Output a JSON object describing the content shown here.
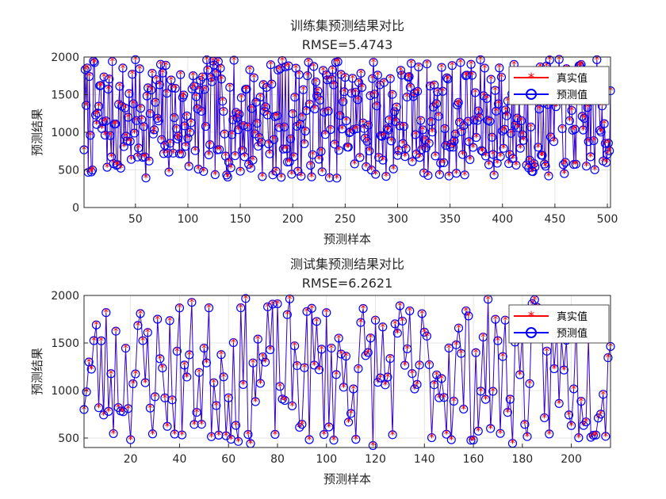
{
  "chart_data": [
    {
      "type": "line",
      "title": "训练集预测结果对比",
      "subtitle": "RMSE=5.4743",
      "xlabel": "预测样本",
      "ylabel": "预测结果",
      "xlim": [
        1,
        503
      ],
      "ylim": [
        0,
        2000
      ],
      "xticks": [
        50,
        100,
        150,
        200,
        250,
        300,
        350,
        400,
        450,
        500
      ],
      "yticks": [
        0,
        500,
        1000,
        1500,
        2000
      ],
      "grid": true,
      "legend_position": "top-right",
      "seed": 7,
      "n_points": 503,
      "series": [
        {
          "name": "真实值",
          "color": "#ff0000",
          "marker": "asterisk"
        },
        {
          "name": "预测值",
          "color": "#0000ff",
          "marker": "circle"
        }
      ]
    },
    {
      "type": "line",
      "title": "测试集预测结果对比",
      "subtitle": "RMSE=6.2621",
      "xlabel": "预测样本",
      "ylabel": "预测结果",
      "xlim": [
        1,
        216
      ],
      "ylim": [
        400,
        2000
      ],
      "xticks": [
        20,
        40,
        60,
        80,
        100,
        120,
        140,
        160,
        180,
        200
      ],
      "yticks": [
        500,
        1000,
        1500,
        2000
      ],
      "grid": true,
      "legend_position": "top-right",
      "seed": 23,
      "n_points": 216,
      "series": [
        {
          "name": "真实值",
          "color": "#ff0000",
          "marker": "asterisk"
        },
        {
          "name": "预测值",
          "color": "#0000ff",
          "marker": "circle"
        }
      ]
    }
  ]
}
